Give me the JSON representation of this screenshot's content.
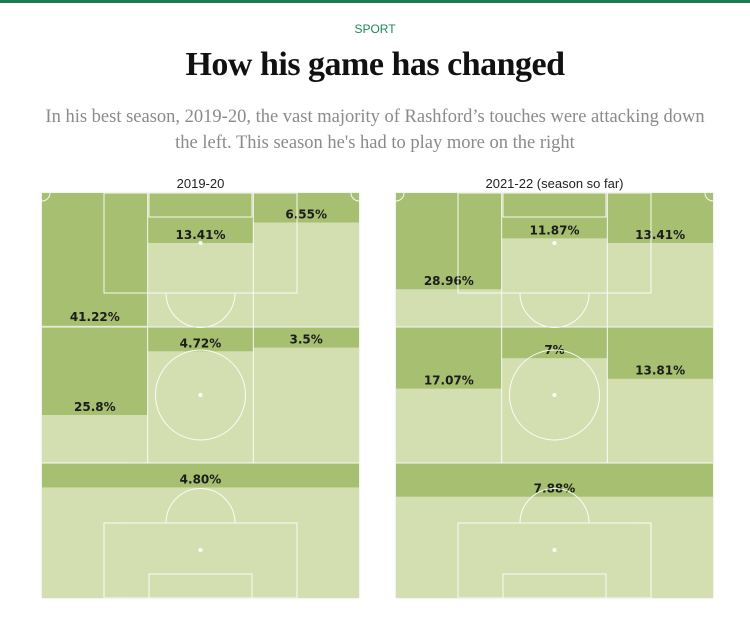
{
  "section": "SPORT",
  "headline": "How his game has changed",
  "standfirst": "In his best season, 2019-20, the vast majority of Rashford’s touches were attacking down the left. This season he's had to play more on the right",
  "colors": {
    "fill": "#a7bf70",
    "pitch_bg": "#d3dfb1",
    "line": "#ffffff",
    "accent": "#1a8a5a"
  },
  "chart_data": [
    {
      "type": "heatmap",
      "title": "2019-20",
      "zones": [
        {
          "zone": "attacking-left",
          "label": "41.22%",
          "value": 41.22
        },
        {
          "zone": "attacking-centre",
          "label": "13.41%",
          "value": 13.41
        },
        {
          "zone": "attacking-right",
          "label": "6.55%",
          "value": 6.55
        },
        {
          "zone": "middle-left",
          "label": "25.8%",
          "value": 25.8
        },
        {
          "zone": "middle-centre",
          "label": "4.72%",
          "value": 4.72
        },
        {
          "zone": "middle-right",
          "label": "3.5%",
          "value": 3.5
        },
        {
          "zone": "defensive",
          "label": "4.80%",
          "value": 4.8
        }
      ]
    },
    {
      "type": "heatmap",
      "title": "2021-22 (season so far)",
      "zones": [
        {
          "zone": "attacking-left",
          "label": "28.96%",
          "value": 28.96
        },
        {
          "zone": "attacking-centre",
          "label": "11.87%",
          "value": 11.87
        },
        {
          "zone": "attacking-right",
          "label": "13.41%",
          "value": 13.41
        },
        {
          "zone": "middle-left",
          "label": "17.07%",
          "value": 17.07
        },
        {
          "zone": "middle-centre",
          "label": "7%",
          "value": 7
        },
        {
          "zone": "middle-right",
          "label": "13.81%",
          "value": 13.81
        },
        {
          "zone": "defensive",
          "label": "7.88%",
          "value": 7.88
        }
      ]
    }
  ]
}
